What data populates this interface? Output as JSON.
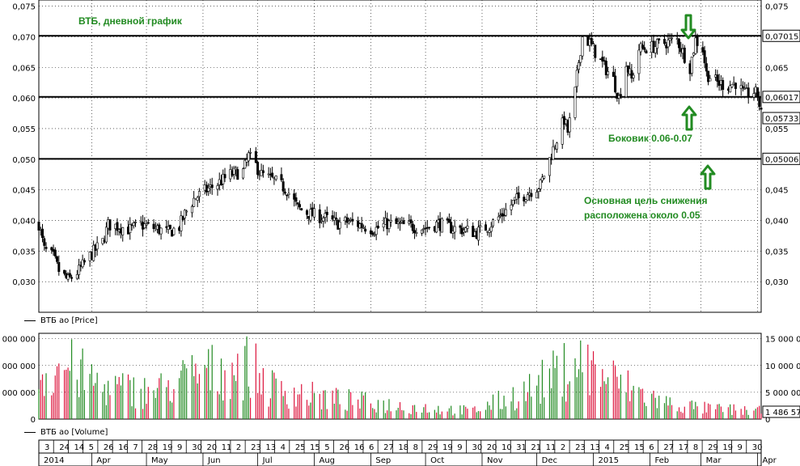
{
  "price_panel": {
    "y_ticks": [
      "0,030",
      "0,035",
      "0,040",
      "0,045",
      "0,050",
      "0,055",
      "0,060",
      "0,065",
      "0,070",
      "0,075"
    ],
    "legend": "ВТБ ао [Price]",
    "last_price": "0,05733",
    "levels": [
      {
        "value": 0.07015,
        "label": "0,07015"
      },
      {
        "value": 0.06017,
        "label": "0,06017"
      },
      {
        "value": 0.05006,
        "label": "0,05006"
      }
    ]
  },
  "volume_panel": {
    "right_ticks": [
      "0",
      "5 000 000",
      "10 000 000",
      "15 000 000"
    ],
    "left_ticks": [
      "0",
      "0 000 000",
      "0 000 000",
      "0 000 000"
    ],
    "legend": "ВТБ ао [Volume]",
    "last_volume": "1 486 57"
  },
  "annotations": {
    "title": "ВТБ, дневной график",
    "sideways": "Боковик 0.06-0.07",
    "target_line1": "Основная цель снижения",
    "target_line2": "расположена около 0.05"
  },
  "date_axis": {
    "day_labels": [
      "3",
      "24",
      "14",
      "5",
      "26",
      "16",
      "7",
      "28",
      "19",
      "9",
      "30",
      "20",
      "11",
      "2",
      "23",
      "13",
      "4",
      "25",
      "15",
      "5",
      "26",
      "16",
      "6",
      "27",
      "18",
      "8",
      "29",
      "19",
      "9",
      "30",
      "20",
      "10",
      "31",
      "21",
      "11",
      "2",
      "23",
      "13",
      "4",
      "25",
      "15",
      "6",
      "27",
      "17",
      "8",
      "29",
      "19",
      "9",
      "30"
    ],
    "month_labels": [
      "2014",
      "Apr",
      "May",
      "Jun",
      "Jul",
      "Aug",
      "Sep",
      "Oct",
      "Nov",
      "Dec",
      "2015",
      "Feb",
      "Mar",
      "Apr"
    ]
  },
  "colors": {
    "up": "#228b22",
    "down": "#dc143c",
    "annotation": "#228b22",
    "arrow": "#228b22"
  },
  "chart_data": {
    "type": "candlestick",
    "x_range": [
      "2014-03-03",
      "2015-04-03"
    ],
    "ylim_price": [
      0.025,
      0.076
    ],
    "ylim_volume": [
      0,
      16000000
    ],
    "horizontal_levels": [
      0.07015,
      0.06017,
      0.05006
    ],
    "last_price": 0.05733,
    "last_volume": 1486570,
    "price_path": [
      [
        "2014-03-03",
        0.0395
      ],
      [
        "2014-03-06",
        0.0352
      ],
      [
        "2014-03-11",
        0.034
      ],
      [
        "2014-03-14",
        0.0318
      ],
      [
        "2014-03-19",
        0.0302
      ],
      [
        "2014-03-25",
        0.0318
      ],
      [
        "2014-03-31",
        0.0342
      ],
      [
        "2014-04-07",
        0.0365
      ],
      [
        "2014-04-10",
        0.0393
      ],
      [
        "2014-04-16",
        0.039
      ],
      [
        "2014-04-22",
        0.0385
      ],
      [
        "2014-04-28",
        0.0393
      ],
      [
        "2014-05-06",
        0.0387
      ],
      [
        "2014-05-13",
        0.038
      ],
      [
        "2014-05-19",
        0.039
      ],
      [
        "2014-05-22",
        0.041
      ],
      [
        "2014-05-27",
        0.0435
      ],
      [
        "2014-06-02",
        0.0448
      ],
      [
        "2014-06-09",
        0.046
      ],
      [
        "2014-06-16",
        0.0475
      ],
      [
        "2014-06-23",
        0.048
      ],
      [
        "2014-06-26",
        0.0505
      ],
      [
        "2014-06-30",
        0.049
      ],
      [
        "2014-07-03",
        0.0475
      ],
      [
        "2014-07-10",
        0.0465
      ],
      [
        "2014-07-17",
        0.045
      ],
      [
        "2014-07-23",
        0.042
      ],
      [
        "2014-07-30",
        0.041
      ],
      [
        "2014-08-06",
        0.0405
      ],
      [
        "2014-08-13",
        0.0395
      ],
      [
        "2014-08-20",
        0.0398
      ],
      [
        "2014-08-27",
        0.0392
      ],
      [
        "2014-09-03",
        0.0385
      ],
      [
        "2014-09-10",
        0.0395
      ],
      [
        "2014-09-17",
        0.0392
      ],
      [
        "2014-09-24",
        0.039
      ],
      [
        "2014-10-01",
        0.0388
      ],
      [
        "2014-10-08",
        0.0395
      ],
      [
        "2014-10-15",
        0.0388
      ],
      [
        "2014-10-22",
        0.0385
      ],
      [
        "2014-10-29",
        0.038
      ],
      [
        "2014-11-05",
        0.0392
      ],
      [
        "2014-11-12",
        0.041
      ],
      [
        "2014-11-19",
        0.0432
      ],
      [
        "2014-11-26",
        0.0445
      ],
      [
        "2014-12-03",
        0.0458
      ],
      [
        "2014-12-08",
        0.05
      ],
      [
        "2014-12-11",
        0.0525
      ],
      [
        "2014-12-16",
        0.0565
      ],
      [
        "2014-12-18",
        0.0545
      ],
      [
        "2014-12-22",
        0.061
      ],
      [
        "2014-12-24",
        0.066
      ],
      [
        "2014-12-26",
        0.07
      ],
      [
        "2014-12-30",
        0.069
      ],
      [
        "2015-01-05",
        0.066
      ],
      [
        "2015-01-12",
        0.063
      ],
      [
        "2015-01-15",
        0.06
      ],
      [
        "2015-01-19",
        0.0655
      ],
      [
        "2015-01-22",
        0.063
      ],
      [
        "2015-01-26",
        0.068
      ],
      [
        "2015-02-02",
        0.0683
      ],
      [
        "2015-02-09",
        0.069
      ],
      [
        "2015-02-16",
        0.0695
      ],
      [
        "2015-02-19",
        0.0675
      ],
      [
        "2015-02-23",
        0.065
      ],
      [
        "2015-02-26",
        0.0695
      ],
      [
        "2015-03-02",
        0.068
      ],
      [
        "2015-03-04",
        0.064
      ],
      [
        "2015-03-10",
        0.0625
      ],
      [
        "2015-03-16",
        0.062
      ],
      [
        "2015-03-20",
        0.0625
      ],
      [
        "2015-03-25",
        0.0605
      ],
      [
        "2015-03-30",
        0.061
      ],
      [
        "2015-04-01",
        0.0605
      ],
      [
        "2015-04-03",
        0.0573
      ]
    ],
    "volume_path": [
      [
        "2014-03-03",
        8000000
      ],
      [
        "2014-03-17",
        10000000
      ],
      [
        "2014-04-07",
        6000000
      ],
      [
        "2014-05-05",
        5000000
      ],
      [
        "2014-05-26",
        8000000
      ],
      [
        "2014-06-26",
        10000000
      ],
      [
        "2014-07-07",
        6000000
      ],
      [
        "2014-08-04",
        4000000
      ],
      [
        "2014-09-15",
        2500000
      ],
      [
        "2014-10-27",
        1500000
      ],
      [
        "2014-11-24",
        5000000
      ],
      [
        "2014-12-16",
        9000000
      ],
      [
        "2014-12-22",
        11000000
      ],
      [
        "2015-01-19",
        6000000
      ],
      [
        "2015-02-09",
        3000000
      ],
      [
        "2015-03-02",
        2000000
      ],
      [
        "2015-04-03",
        1486570
      ]
    ]
  }
}
